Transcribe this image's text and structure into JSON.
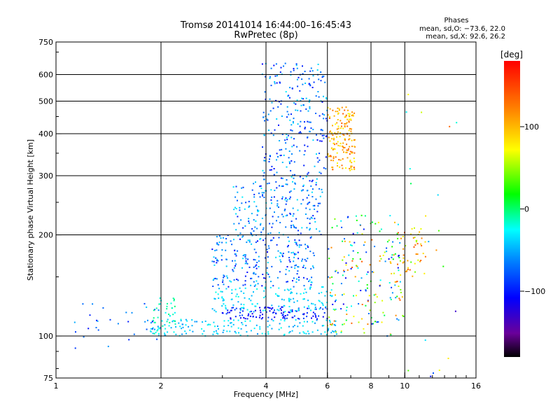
{
  "title": "Tromsø 20141014 16:44:00–16:45:43",
  "subtitle": "RwPretec (8p)",
  "phases": {
    "heading": "Phases",
    "line_o": "mean, sd,O: −73.6, 22.0",
    "line_x": "mean, sd,X:  92.6, 26.2"
  },
  "colorbar": {
    "unit": "[deg]",
    "min": -180,
    "max": 180,
    "ticks": [
      {
        "value": 100,
        "label": "100"
      },
      {
        "value": 0,
        "label": "0"
      },
      {
        "value": -100,
        "label": "−100"
      }
    ]
  },
  "chart_data": {
    "type": "scatter",
    "xlabel": "Frequency [MHz]",
    "ylabel": "Stationary phase Virtual Height [km]",
    "xscale": "log",
    "yscale": "log",
    "xlim": [
      1,
      16
    ],
    "ylim": [
      75,
      750
    ],
    "xticks": [
      1,
      2,
      4,
      6,
      8,
      10,
      16
    ],
    "xtick_labels": [
      "1",
      "2",
      "4",
      "6",
      "8",
      "10",
      "16"
    ],
    "yticks": [
      75,
      100,
      200,
      300,
      400,
      500,
      600,
      750
    ],
    "ytick_labels": [
      "75",
      "100",
      "200",
      "300",
      "400",
      "500",
      "600",
      "750"
    ],
    "grid_x": [
      2,
      4,
      6,
      8,
      10
    ],
    "grid_y": [
      100,
      200,
      300,
      400,
      500,
      600
    ],
    "color_variable": "phase [deg]",
    "clusters": [
      {
        "x_range": [
          1.8,
          6.5
        ],
        "y_range": [
          100,
          112
        ],
        "phase_range": [
          -60,
          -20
        ],
        "density": 160
      },
      {
        "x_range": [
          3.0,
          6.0
        ],
        "y_range": [
          112,
          122
        ],
        "phase_range": [
          -120,
          -80
        ],
        "density": 110
      },
      {
        "x_range": [
          2.8,
          6.5
        ],
        "y_range": [
          118,
          140
        ],
        "phase_range": [
          -50,
          -20
        ],
        "density": 140
      },
      {
        "x_range": [
          2.8,
          5.5
        ],
        "y_range": [
          140,
          200
        ],
        "phase_range": [
          -110,
          -30
        ],
        "density": 240
      },
      {
        "x_range": [
          3.2,
          5.8
        ],
        "y_range": [
          200,
          290
        ],
        "phase_range": [
          -100,
          -30
        ],
        "density": 200
      },
      {
        "x_range": [
          3.9,
          6.0
        ],
        "y_range": [
          290,
          650
        ],
        "phase_range": [
          -110,
          -30
        ],
        "density": 260
      },
      {
        "x_range": [
          6.0,
          7.2
        ],
        "y_range": [
          310,
          480
        ],
        "phase_range": [
          70,
          140
        ],
        "density": 170
      },
      {
        "x_range": [
          6.0,
          10.0
        ],
        "y_range": [
          100,
          230
        ],
        "phase_range": [
          -120,
          140
        ],
        "density": 200
      },
      {
        "x_range": [
          9.5,
          11.5
        ],
        "y_range": [
          150,
          210
        ],
        "phase_range": [
          30,
          150
        ],
        "density": 50
      },
      {
        "x_range": [
          1.1,
          2.0
        ],
        "y_range": [
          92,
          125
        ],
        "phase_range": [
          -110,
          -40
        ],
        "density": 30
      },
      {
        "x_range": [
          1.9,
          2.2
        ],
        "y_range": [
          100,
          130
        ],
        "phase_range": [
          -30,
          0
        ],
        "density": 40
      },
      {
        "x_range": [
          10.0,
          14.5
        ],
        "y_range": [
          75,
          600
        ],
        "phase_range": [
          -150,
          150
        ],
        "density": 20
      }
    ]
  }
}
